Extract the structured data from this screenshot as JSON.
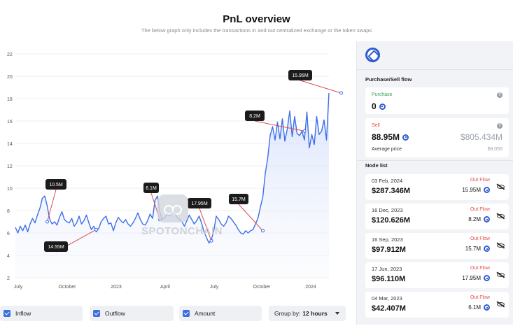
{
  "header": {
    "title": "PnL overview",
    "subtitle": "The below graph only includes the transactions in and out centralized exchange or the token swaps"
  },
  "watermark": "SPOTONCHAIN",
  "chart_data": {
    "type": "line",
    "y_ticks": [
      "22",
      "20",
      "18",
      "16",
      "14",
      "12",
      "10",
      "8",
      "6",
      "4",
      "2"
    ],
    "ylim": [
      2,
      22
    ],
    "x_ticks": [
      "July",
      "October",
      "2023",
      "April",
      "July",
      "October",
      "2024"
    ],
    "line_color": "#3e6ee8",
    "series": [
      {
        "values": [
          6.5,
          6.0,
          6.6,
          6.2,
          6.7,
          6.1,
          6.8,
          7.3,
          6.9,
          7.6,
          8.2,
          9.1,
          9.3,
          8.4,
          7.2,
          6.8,
          7.0,
          6.7,
          7.4,
          7.9,
          7.2,
          7.0,
          6.9,
          7.3,
          6.6,
          6.9,
          7.5,
          6.8,
          7.1,
          7.6,
          6.9,
          6.3,
          6.6,
          6.1,
          6.4,
          7.0,
          7.3,
          7.5,
          6.8,
          6.9,
          6.2,
          6.9,
          7.4,
          7.1,
          6.9,
          7.2,
          6.8,
          6.6,
          6.9,
          7.3,
          7.8,
          7.2,
          6.8,
          6.7,
          7.1,
          7.7,
          7.3,
          8.9,
          9.3,
          7.8,
          7.2,
          7.4,
          7.7,
          7.5,
          7.9,
          7.8,
          7.4,
          7.2,
          7.0,
          6.6,
          7.1,
          7.6,
          7.2,
          6.8,
          7.1,
          7.5,
          6.9,
          6.1,
          5.6,
          5.1,
          5.4,
          6.2,
          7.5,
          7.2,
          6.8,
          6.6,
          6.9,
          7.5,
          7.3,
          7.0,
          6.7,
          6.3,
          6.0,
          5.9,
          6.2,
          6.0,
          6.2,
          6.3,
          6.8,
          7.3,
          8.3,
          9.2,
          11.3,
          12.7,
          14.7,
          15.5,
          14.3,
          15.9,
          14.4,
          16.2,
          14.2,
          15.3,
          16.9,
          14.6,
          16.4,
          14.9,
          14.7,
          15.1,
          14.3,
          16.8,
          13.6,
          14.8,
          13.9,
          16.4,
          14.8,
          15.1,
          16.1,
          14.3,
          18.5
        ]
      }
    ],
    "annotations": [
      {
        "label": "15.95M",
        "x_index": 133,
        "y": 18.5
      },
      {
        "label": "8.2M",
        "x_index": 118,
        "y": 15.1
      },
      {
        "label": "10.5M",
        "x_index": 13,
        "y": 7.0
      },
      {
        "label": "14.55M",
        "x_index": 33,
        "y": 6.3
      },
      {
        "label": "6.1M",
        "x_index": 59,
        "y": 7.2
      },
      {
        "label": "17.95M",
        "x_index": 80,
        "y": 5.3
      },
      {
        "label": "15.7M",
        "x_index": 101,
        "y": 6.2
      }
    ]
  },
  "controls": {
    "inflow": "Inflow",
    "outflow": "Outflow",
    "amount": "Amount",
    "group_prefix": "Group by:",
    "group_value": "12 hours"
  },
  "panel": {
    "purchase_sell_title": "Purchase/Sell flow",
    "purchase_label": "Purchase",
    "purchase_value": "0",
    "sell_label": "Sell",
    "sell_value": "88.95M",
    "sell_usd": "$805.434M",
    "avg_label": "Average price",
    "avg_value": "$9.055",
    "node_list_title": "Node list",
    "nodes": [
      {
        "date": "03 Feb, 2024",
        "amount": "$287.346M",
        "flow": "Out Flow",
        "qty": "15.95M"
      },
      {
        "date": "16 Dec, 2023",
        "amount": "$120.626M",
        "flow": "Out Flow",
        "qty": "8.2M"
      },
      {
        "date": "16 Sep, 2023",
        "amount": "$97.912M",
        "flow": "Out Flow",
        "qty": "15.7M"
      },
      {
        "date": "17 Jun, 2023",
        "amount": "$96.110M",
        "flow": "Out Flow",
        "qty": "17.95M"
      },
      {
        "date": "04 Mar, 2023",
        "amount": "$42.407M",
        "flow": "Out Flow",
        "qty": "6.1M"
      }
    ]
  }
}
